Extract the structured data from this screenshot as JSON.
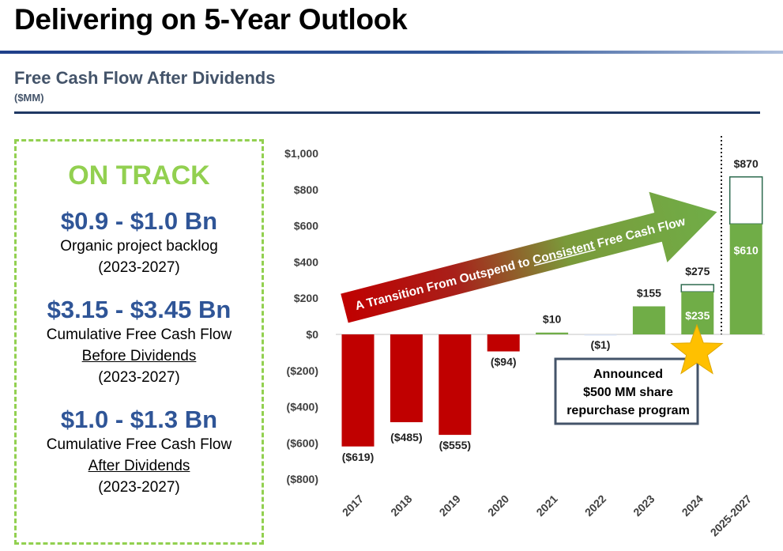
{
  "title": "Delivering on 5-Year Outlook",
  "subtitle": "Free Cash Flow After Dividends",
  "unit": "($MM)",
  "panel": {
    "status": "ON TRACK",
    "items": [
      {
        "value": "$0.9 - $1.0 Bn",
        "line1": "Organic project backlog",
        "line2": "",
        "period": "(2023-2027)"
      },
      {
        "value": "$3.15 - $3.45 Bn",
        "line1": "Cumulative Free Cash Flow",
        "line2": "Before Dividends",
        "period": "(2023-2027)"
      },
      {
        "value": "$1.0 - $1.3 Bn",
        "line1": "Cumulative Free Cash Flow",
        "line2": "After Dividends",
        "period": "(2023-2027)"
      }
    ]
  },
  "chart_data": {
    "type": "bar",
    "categories": [
      "2017",
      "2018",
      "2019",
      "2020",
      "2021",
      "2022",
      "2023",
      "2024",
      "2025-2027"
    ],
    "values": [
      -619,
      -485,
      -555,
      -94,
      10,
      -1,
      155,
      235,
      610
    ],
    "totals": [
      null,
      null,
      null,
      null,
      null,
      null,
      null,
      275,
      870
    ],
    "data_labels": [
      "($619)",
      "($485)",
      "($555)",
      "($94)",
      "$10",
      "($1)",
      "$155",
      "$235",
      "$610"
    ],
    "total_labels": [
      "",
      "",
      "",
      "",
      "",
      "",
      "",
      "$275",
      "$870"
    ],
    "ylim": [
      -800,
      1000
    ],
    "yticks": [
      1000,
      800,
      600,
      400,
      200,
      0,
      -200,
      -400,
      -600,
      -800
    ],
    "ytick_labels": [
      "$1,000",
      "$800",
      "$600",
      "$400",
      "$200",
      "$0",
      "($200)",
      "($400)",
      "($600)",
      "($800)"
    ],
    "arrow_text": {
      "before": "A Transition From Outspend to ",
      "underlined": "Consistent",
      "after": " Free Cash Flow"
    },
    "callout": [
      "Announced",
      "$500 MM share",
      "repurchase program"
    ],
    "colors": {
      "negative": "#C00000",
      "positive": "#70AD47",
      "outline": "#2E6B4F"
    }
  }
}
